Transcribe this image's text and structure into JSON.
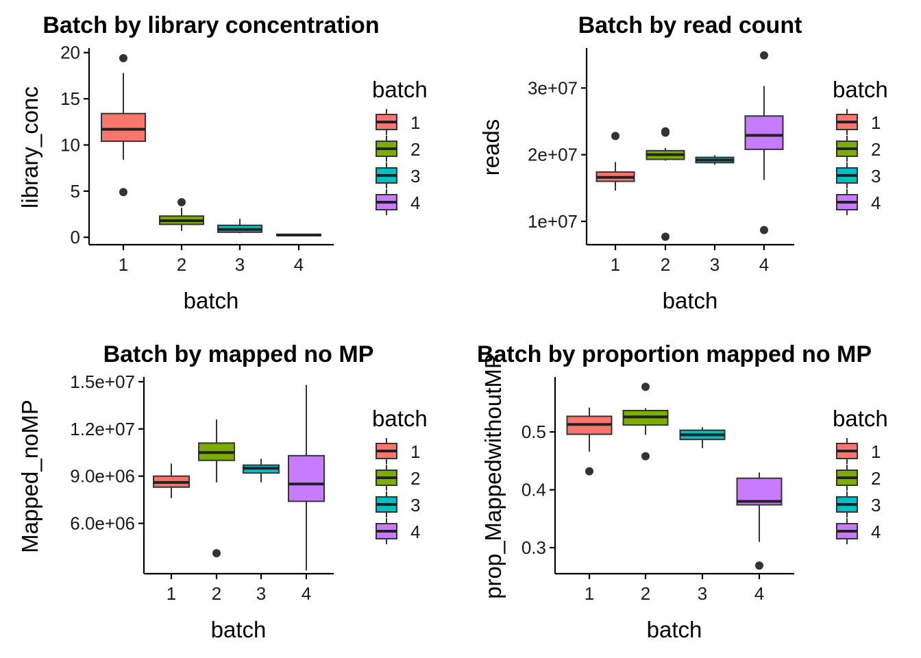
{
  "chart_data": [
    {
      "type": "box",
      "title": "Batch by library concentration",
      "xlabel": "batch",
      "ylabel": "library_conc",
      "categories": [
        "1",
        "2",
        "3",
        "4"
      ],
      "ylim": [
        -0.8,
        20.5
      ],
      "yticks": [
        0,
        5,
        10,
        15,
        20
      ],
      "ytick_labels": [
        "0",
        "5",
        "10",
        "15",
        "20"
      ],
      "legend": {
        "title": "batch",
        "position": "right",
        "labels": [
          "1",
          "2",
          "3",
          "4"
        ]
      },
      "boxes": [
        {
          "category": "1",
          "whisker_low": 8.4,
          "q1": 10.4,
          "median": 11.7,
          "q3": 13.4,
          "whisker_high": 17.8,
          "outliers": [
            19.4,
            4.9
          ]
        },
        {
          "category": "2",
          "whisker_low": 0.7,
          "q1": 1.4,
          "median": 1.8,
          "q3": 2.3,
          "whisker_high": 3.2,
          "outliers": [
            3.8
          ]
        },
        {
          "category": "3",
          "whisker_low": 0.45,
          "q1": 0.55,
          "median": 0.85,
          "q3": 1.3,
          "whisker_high": 2.0,
          "outliers": []
        },
        {
          "category": "4",
          "whisker_low": 0.15,
          "q1": 0.18,
          "median": 0.25,
          "q3": 0.32,
          "whisker_high": 0.38,
          "outliers": []
        }
      ]
    },
    {
      "type": "box",
      "title": "Batch by read count",
      "xlabel": "batch",
      "ylabel": "reads",
      "categories": [
        "1",
        "2",
        "3",
        "4"
      ],
      "ylim": [
        6500000,
        36000000
      ],
      "yticks": [
        10000000,
        20000000,
        30000000
      ],
      "ytick_labels": [
        "1e+07",
        "2e+07",
        "3e+07"
      ],
      "legend": {
        "title": "batch",
        "position": "right",
        "labels": [
          "1",
          "2",
          "3",
          "4"
        ]
      },
      "boxes": [
        {
          "category": "1",
          "whisker_low": 14600000,
          "q1": 16000000,
          "median": 16600000,
          "q3": 17400000,
          "whisker_high": 18900000,
          "outliers": [
            22800000
          ]
        },
        {
          "category": "2",
          "whisker_low": 19100000,
          "q1": 19300000,
          "median": 20000000,
          "q3": 20600000,
          "whisker_high": 21000000,
          "outliers": [
            23300000,
            23500000,
            7700000
          ]
        },
        {
          "category": "3",
          "whisker_low": 18500000,
          "q1": 18800000,
          "median": 19200000,
          "q3": 19600000,
          "whisker_high": 19900000,
          "outliers": []
        },
        {
          "category": "4",
          "whisker_low": 16200000,
          "q1": 20800000,
          "median": 22900000,
          "q3": 25800000,
          "whisker_high": 30300000,
          "outliers": [
            34900000,
            8700000
          ]
        }
      ]
    },
    {
      "type": "box",
      "title": "Batch by mapped no MP",
      "xlabel": "batch",
      "ylabel": "Mapped_noMP",
      "categories": [
        "1",
        "2",
        "3",
        "4"
      ],
      "ylim": [
        2800000,
        15300000
      ],
      "yticks": [
        6000000,
        9000000,
        12000000,
        15000000
      ],
      "ytick_labels": [
        "6.0e+06",
        "9.0e+06",
        "1.2e+07",
        "1.5e+07"
      ],
      "legend": {
        "title": "batch",
        "position": "right",
        "labels": [
          "1",
          "2",
          "3",
          "4"
        ]
      },
      "boxes": [
        {
          "category": "1",
          "whisker_low": 7600000,
          "q1": 8300000,
          "median": 8600000,
          "q3": 9000000,
          "whisker_high": 9800000,
          "outliers": []
        },
        {
          "category": "2",
          "whisker_low": 8600000,
          "q1": 10000000,
          "median": 10500000,
          "q3": 11100000,
          "whisker_high": 12600000,
          "outliers": [
            4100000
          ]
        },
        {
          "category": "3",
          "whisker_low": 8600000,
          "q1": 9200000,
          "median": 9500000,
          "q3": 9700000,
          "whisker_high": 10100000,
          "outliers": []
        },
        {
          "category": "4",
          "whisker_low": 3000000,
          "q1": 7400000,
          "median": 8500000,
          "q3": 10300000,
          "whisker_high": 14800000,
          "outliers": []
        }
      ]
    },
    {
      "type": "box",
      "title": "Batch by proportion mapped no MP",
      "xlabel": "batch",
      "ylabel": "prop_MappedwithoutMP",
      "categories": [
        "1",
        "2",
        "3",
        "4"
      ],
      "ylim": [
        0.255,
        0.595
      ],
      "yticks": [
        0.3,
        0.4,
        0.5
      ],
      "ytick_labels": [
        "0.3",
        "0.4",
        "0.5"
      ],
      "legend": {
        "title": "batch",
        "position": "right",
        "labels": [
          "1",
          "2",
          "3",
          "4"
        ]
      },
      "boxes": [
        {
          "category": "1",
          "whisker_low": 0.466,
          "q1": 0.496,
          "median": 0.513,
          "q3": 0.527,
          "whisker_high": 0.542,
          "outliers": [
            0.432
          ]
        },
        {
          "category": "2",
          "whisker_low": 0.495,
          "q1": 0.512,
          "median": 0.526,
          "q3": 0.537,
          "whisker_high": 0.541,
          "outliers": [
            0.578,
            0.458
          ]
        },
        {
          "category": "3",
          "whisker_low": 0.472,
          "q1": 0.487,
          "median": 0.495,
          "q3": 0.503,
          "whisker_high": 0.508,
          "outliers": []
        },
        {
          "category": "4",
          "whisker_low": 0.31,
          "q1": 0.374,
          "median": 0.38,
          "q3": 0.42,
          "whisker_high": 0.43,
          "outliers": [
            0.269
          ]
        }
      ]
    }
  ],
  "colors": {
    "batch_1": "#F8766D",
    "batch_2": "#7CAE00",
    "batch_3": "#00BFC4",
    "batch_4": "#C77CFF"
  }
}
